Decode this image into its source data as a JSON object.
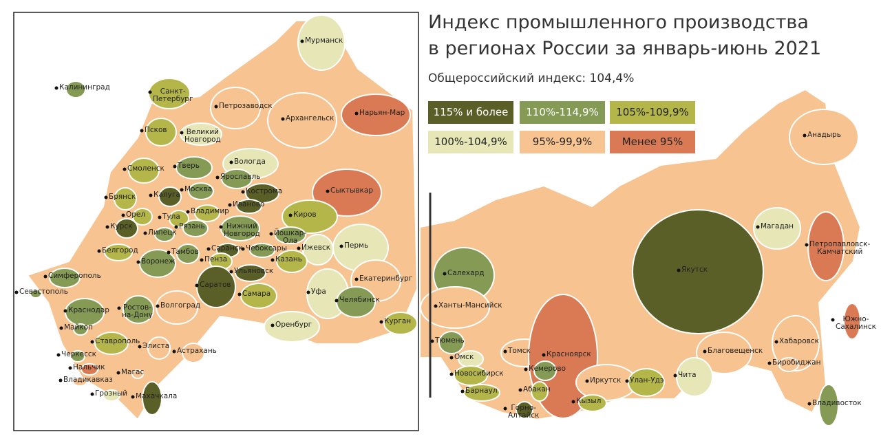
{
  "header": {
    "title": "Индекс промышленного производства\nв регионах России за январь-июнь 2021",
    "subtitle": "Общероссийский индекс: 104,4%"
  },
  "legend": [
    {
      "label": "115% и более",
      "color": "#5a5f27"
    },
    {
      "label": "110%-114,9%",
      "color": "#849a55"
    },
    {
      "label": "105%-109,9%",
      "color": "#b4b649"
    },
    {
      "label": "100%-104,9%",
      "color": "#e6e6b6"
    },
    {
      "label": "95%-99,9%",
      "color": "#f6c391"
    },
    {
      "label": "Менее 95%",
      "color": "#d97a55"
    }
  ],
  "cities": [
    {
      "name": "Калининград"
    },
    {
      "name": "Санкт-\nПетербург"
    },
    {
      "name": "Псков"
    },
    {
      "name": "Великий\nНовгород"
    },
    {
      "name": "Петрозаводск"
    },
    {
      "name": "Мурманск"
    },
    {
      "name": "Архангельск"
    },
    {
      "name": "Нарьян-Мар"
    },
    {
      "name": "Вологда"
    },
    {
      "name": "Смоленск"
    },
    {
      "name": "Тверь"
    },
    {
      "name": "Ярославль"
    },
    {
      "name": "Сыктывкар"
    },
    {
      "name": "Брянск"
    },
    {
      "name": "Калуга"
    },
    {
      "name": "Москва"
    },
    {
      "name": "Кострома"
    },
    {
      "name": "Иваново"
    },
    {
      "name": "Орел"
    },
    {
      "name": "Тула"
    },
    {
      "name": "Владимир"
    },
    {
      "name": "Киров"
    },
    {
      "name": "Курск"
    },
    {
      "name": "Рязань"
    },
    {
      "name": "Нижний\nНовгород"
    },
    {
      "name": "Йошкар-\nОла"
    },
    {
      "name": "Липецк"
    },
    {
      "name": "Саранск"
    },
    {
      "name": "Чебоксары"
    },
    {
      "name": "Ижевск"
    },
    {
      "name": "Пермь"
    },
    {
      "name": "Белгород"
    },
    {
      "name": "Тамбов"
    },
    {
      "name": "Воронеж"
    },
    {
      "name": "Казань"
    },
    {
      "name": "Пенза"
    },
    {
      "name": "Ульяновск"
    },
    {
      "name": "Симферополь"
    },
    {
      "name": "Севастополь"
    },
    {
      "name": "Саратов"
    },
    {
      "name": "Самара"
    },
    {
      "name": "Екатеринбург"
    },
    {
      "name": "Уфа"
    },
    {
      "name": "Ростов-\nна-Дону"
    },
    {
      "name": "Волгоград"
    },
    {
      "name": "Челябинск"
    },
    {
      "name": "Краснодар"
    },
    {
      "name": "Курган"
    },
    {
      "name": "Майкоп"
    },
    {
      "name": "Оренбург"
    },
    {
      "name": "Ставрополь"
    },
    {
      "name": "Элиста"
    },
    {
      "name": "Черкесск"
    },
    {
      "name": "Астрахань"
    },
    {
      "name": "Нальчик"
    },
    {
      "name": "Магас"
    },
    {
      "name": "Владикавказ"
    },
    {
      "name": "Грозный"
    },
    {
      "name": "Махачкала"
    },
    {
      "name": "Анадырь"
    },
    {
      "name": "Магадан"
    },
    {
      "name": "Петропавловск-\nКамчатский"
    },
    {
      "name": "Салехард"
    },
    {
      "name": "Якутск"
    },
    {
      "name": "Ханты-Мансийск"
    },
    {
      "name": "Южно-\nСахалинск"
    },
    {
      "name": "Тюмень"
    },
    {
      "name": "Томск"
    },
    {
      "name": "Красноярск"
    },
    {
      "name": "Благовещенск"
    },
    {
      "name": "Хабаровск"
    },
    {
      "name": "Омск"
    },
    {
      "name": "Биробиджан"
    },
    {
      "name": "Кемерово"
    },
    {
      "name": "Новосибирск"
    },
    {
      "name": "Иркутск"
    },
    {
      "name": "Улан-Удэ"
    },
    {
      "name": "Чита"
    },
    {
      "name": "Абакан"
    },
    {
      "name": "Барнаул"
    },
    {
      "name": "Кызыл"
    },
    {
      "name": "Горно-\nАлтайск"
    },
    {
      "name": "Владивосток"
    }
  ]
}
